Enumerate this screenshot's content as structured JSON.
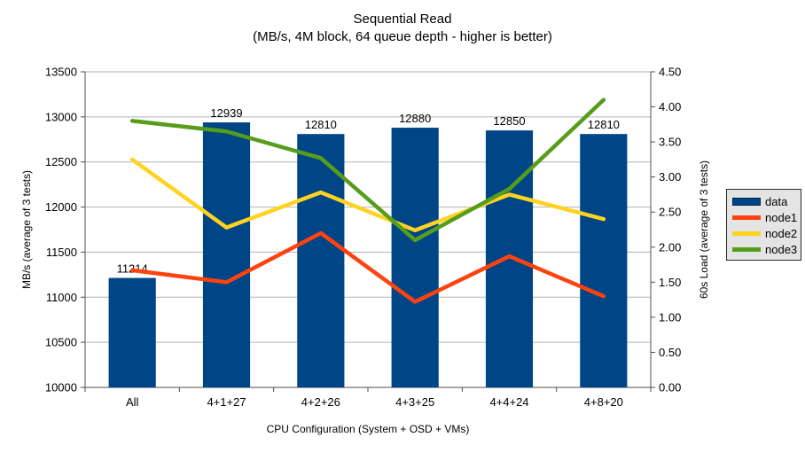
{
  "title": {
    "line1": "Sequential Read",
    "line2": "(MB/s, 4M block, 64 queue depth - higher is better)"
  },
  "chart_data": {
    "type": "bar+line",
    "categories": [
      "All",
      "4+1+27",
      "4+2+26",
      "4+3+25",
      "4+4+24",
      "4+8+20"
    ],
    "bar_series": {
      "name": "data",
      "color": "#004586",
      "axis": "left",
      "values": [
        11214,
        12939,
        12810,
        12880,
        12850,
        12810
      ],
      "data_labels": [
        "11214",
        "12939",
        "12810",
        "12880",
        "12850",
        "12810"
      ]
    },
    "line_series": [
      {
        "name": "node1",
        "color": "#ff420e",
        "axis": "right",
        "values": [
          1.67,
          1.5,
          2.2,
          1.22,
          1.87,
          1.3
        ]
      },
      {
        "name": "node2",
        "color": "#ffd320",
        "axis": "right",
        "values": [
          3.25,
          2.28,
          2.78,
          2.24,
          2.75,
          2.4
        ]
      },
      {
        "name": "node3",
        "color": "#579d1c",
        "axis": "right",
        "values": [
          3.8,
          3.65,
          3.27,
          2.1,
          2.83,
          4.1
        ]
      }
    ],
    "xlabel": "CPU Configuration (System + OSD + VMs)",
    "ylabel_left": "MB/s (average of 3 tests)",
    "ylabel_right": "60s Load (average of 3 tests)",
    "y_left": {
      "min": 10000,
      "max": 13500,
      "step": 500
    },
    "y_right": {
      "min": 0,
      "max": 4.5,
      "step": 0.5,
      "decimals": 2
    },
    "grid": true,
    "legend_position": "right",
    "colors": {
      "grid": "#b3b3b3",
      "axis": "#4d4d4d",
      "text": "#000000",
      "legend_bg": "#e4e4e4"
    }
  }
}
